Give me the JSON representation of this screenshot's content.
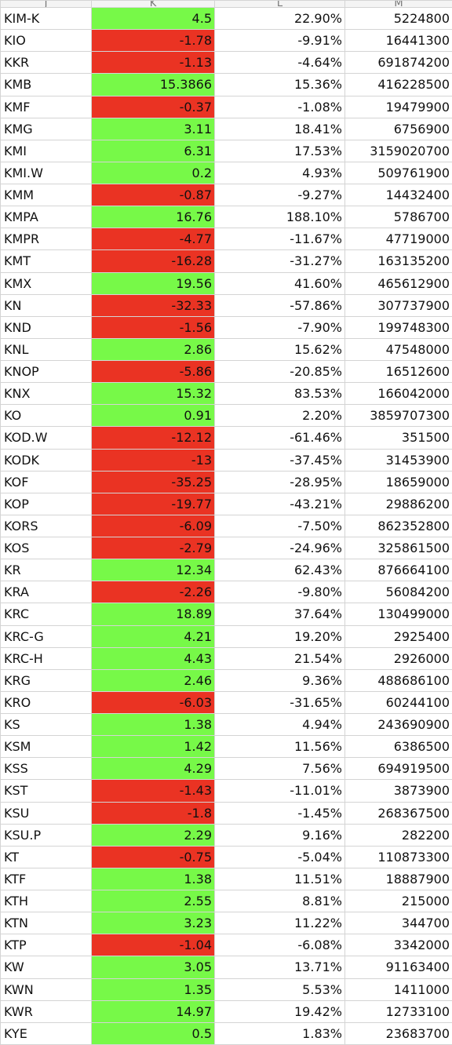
{
  "colors": {
    "positive_fill": "#77f948",
    "negative_fill": "#ea3323",
    "gridline": "#d4d4d4",
    "header_fill": "#f4f4f4"
  },
  "columns": [
    "J",
    "K",
    "L",
    "M"
  ],
  "rows": [
    {
      "symbol": "KIM-K",
      "change": "4.5",
      "pct": "22.90%",
      "volume": "5224800",
      "status": "positive"
    },
    {
      "symbol": "KIO",
      "change": "-1.78",
      "pct": "-9.91%",
      "volume": "16441300",
      "status": "negative"
    },
    {
      "symbol": "KKR",
      "change": "-1.13",
      "pct": "-4.64%",
      "volume": "691874200",
      "status": "negative"
    },
    {
      "symbol": "KMB",
      "change": "15.3866",
      "pct": "15.36%",
      "volume": "416228500",
      "status": "positive"
    },
    {
      "symbol": "KMF",
      "change": "-0.37",
      "pct": "-1.08%",
      "volume": "19479900",
      "status": "negative"
    },
    {
      "symbol": "KMG",
      "change": "3.11",
      "pct": "18.41%",
      "volume": "6756900",
      "status": "positive"
    },
    {
      "symbol": "KMI",
      "change": "6.31",
      "pct": "17.53%",
      "volume": "3159020700",
      "status": "positive"
    },
    {
      "symbol": "KMI.W",
      "change": "0.2",
      "pct": "4.93%",
      "volume": "509761900",
      "status": "positive"
    },
    {
      "symbol": "KMM",
      "change": "-0.87",
      "pct": "-9.27%",
      "volume": "14432400",
      "status": "negative"
    },
    {
      "symbol": "KMPA",
      "change": "16.76",
      "pct": "188.10%",
      "volume": "5786700",
      "status": "positive"
    },
    {
      "symbol": "KMPR",
      "change": "-4.77",
      "pct": "-11.67%",
      "volume": "47719000",
      "status": "negative"
    },
    {
      "symbol": "KMT",
      "change": "-16.28",
      "pct": "-31.27%",
      "volume": "163135200",
      "status": "negative"
    },
    {
      "symbol": "KMX",
      "change": "19.56",
      "pct": "41.60%",
      "volume": "465612900",
      "status": "positive"
    },
    {
      "symbol": "KN",
      "change": "-32.33",
      "pct": "-57.86%",
      "volume": "307737900",
      "status": "negative"
    },
    {
      "symbol": "KND",
      "change": "-1.56",
      "pct": "-7.90%",
      "volume": "199748300",
      "status": "negative"
    },
    {
      "symbol": "KNL",
      "change": "2.86",
      "pct": "15.62%",
      "volume": "47548000",
      "status": "positive"
    },
    {
      "symbol": "KNOP",
      "change": "-5.86",
      "pct": "-20.85%",
      "volume": "16512600",
      "status": "negative"
    },
    {
      "symbol": "KNX",
      "change": "15.32",
      "pct": "83.53%",
      "volume": "166042000",
      "status": "positive"
    },
    {
      "symbol": "KO",
      "change": "0.91",
      "pct": "2.20%",
      "volume": "3859707300",
      "status": "positive"
    },
    {
      "symbol": "KOD.W",
      "change": "-12.12",
      "pct": "-61.46%",
      "volume": "351500",
      "status": "negative"
    },
    {
      "symbol": "KODK",
      "change": "-13",
      "pct": "-37.45%",
      "volume": "31453900",
      "status": "negative"
    },
    {
      "symbol": "KOF",
      "change": "-35.25",
      "pct": "-28.95%",
      "volume": "18659000",
      "status": "negative"
    },
    {
      "symbol": "KOP",
      "change": "-19.77",
      "pct": "-43.21%",
      "volume": "29886200",
      "status": "negative"
    },
    {
      "symbol": "KORS",
      "change": "-6.09",
      "pct": "-7.50%",
      "volume": "862352800",
      "status": "negative"
    },
    {
      "symbol": "KOS",
      "change": "-2.79",
      "pct": "-24.96%",
      "volume": "325861500",
      "status": "negative"
    },
    {
      "symbol": "KR",
      "change": "12.34",
      "pct": "62.43%",
      "volume": "876664100",
      "status": "positive"
    },
    {
      "symbol": "KRA",
      "change": "-2.26",
      "pct": "-9.80%",
      "volume": "56084200",
      "status": "negative"
    },
    {
      "symbol": "KRC",
      "change": "18.89",
      "pct": "37.64%",
      "volume": "130499000",
      "status": "positive"
    },
    {
      "symbol": "KRC-G",
      "change": "4.21",
      "pct": "19.20%",
      "volume": "2925400",
      "status": "positive"
    },
    {
      "symbol": "KRC-H",
      "change": "4.43",
      "pct": "21.54%",
      "volume": "2926000",
      "status": "positive"
    },
    {
      "symbol": "KRG",
      "change": "2.46",
      "pct": "9.36%",
      "volume": "488686100",
      "status": "positive"
    },
    {
      "symbol": "KRO",
      "change": "-6.03",
      "pct": "-31.65%",
      "volume": "60244100",
      "status": "negative"
    },
    {
      "symbol": "KS",
      "change": "1.38",
      "pct": "4.94%",
      "volume": "243690900",
      "status": "positive"
    },
    {
      "symbol": "KSM",
      "change": "1.42",
      "pct": "11.56%",
      "volume": "6386500",
      "status": "positive"
    },
    {
      "symbol": "KSS",
      "change": "4.29",
      "pct": "7.56%",
      "volume": "694919500",
      "status": "positive"
    },
    {
      "symbol": "KST",
      "change": "-1.43",
      "pct": "-11.01%",
      "volume": "3873900",
      "status": "negative"
    },
    {
      "symbol": "KSU",
      "change": "-1.8",
      "pct": "-1.45%",
      "volume": "268367500",
      "status": "negative"
    },
    {
      "symbol": "KSU.P",
      "change": "2.29",
      "pct": "9.16%",
      "volume": "282200",
      "status": "positive"
    },
    {
      "symbol": "KT",
      "change": "-0.75",
      "pct": "-5.04%",
      "volume": "110873300",
      "status": "negative"
    },
    {
      "symbol": "KTF",
      "change": "1.38",
      "pct": "11.51%",
      "volume": "18887900",
      "status": "positive"
    },
    {
      "symbol": "KTH",
      "change": "2.55",
      "pct": "8.81%",
      "volume": "215000",
      "status": "positive"
    },
    {
      "symbol": "KTN",
      "change": "3.23",
      "pct": "11.22%",
      "volume": "344700",
      "status": "positive"
    },
    {
      "symbol": "KTP",
      "change": "-1.04",
      "pct": "-6.08%",
      "volume": "3342000",
      "status": "negative"
    },
    {
      "symbol": "KW",
      "change": "3.05",
      "pct": "13.71%",
      "volume": "91163400",
      "status": "positive"
    },
    {
      "symbol": "KWN",
      "change": "1.35",
      "pct": "5.53%",
      "volume": "1411000",
      "status": "positive"
    },
    {
      "symbol": "KWR",
      "change": "14.97",
      "pct": "19.42%",
      "volume": "12733100",
      "status": "positive"
    },
    {
      "symbol": "KYE",
      "change": "0.5",
      "pct": "1.83%",
      "volume": "23683700",
      "status": "positive"
    }
  ]
}
